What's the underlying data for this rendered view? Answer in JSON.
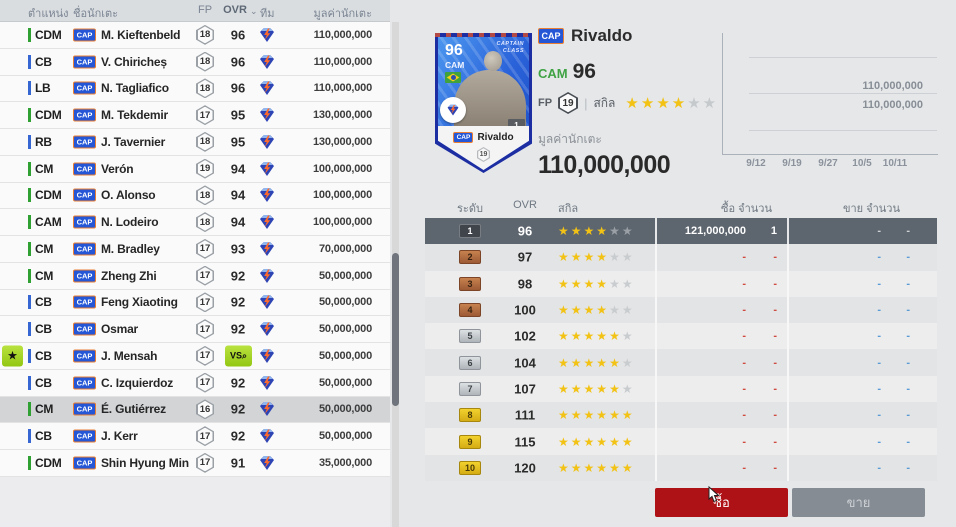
{
  "colors": {
    "accent_green": "#2fa133",
    "accent_blue": "#3566d2",
    "star_gold": "#f2c215",
    "buy_button_red": "#ae1116",
    "sell_button_gray": "#858c94",
    "vs_badge_green": "#a3d41c",
    "selected_market_row": "#5d656e",
    "cap_badge_blue": "#2456d6",
    "cap_badge_orange_border": "#e87f33"
  },
  "left_table": {
    "headers": {
      "position": "ตำแหน่ง",
      "name": "ชื่อนักเตะ",
      "fp": "FP",
      "ovr": "OVR",
      "team": "ทีม",
      "value": "มูลค่านักเตะ"
    },
    "rows": [
      {
        "position": "CDM",
        "pos_color": "green",
        "badge": "CAP",
        "name": "M. Kieftenbeld",
        "fp": "18",
        "ovr": "96",
        "value": "110,000,000"
      },
      {
        "position": "CB",
        "pos_color": "blue",
        "badge": "CAP",
        "name": "V. Chiricheș",
        "fp": "18",
        "ovr": "96",
        "value": "110,000,000"
      },
      {
        "position": "LB",
        "pos_color": "blue",
        "badge": "CAP",
        "name": "N. Tagliafico",
        "fp": "18",
        "ovr": "96",
        "value": "110,000,000"
      },
      {
        "position": "CDM",
        "pos_color": "green",
        "badge": "CAP",
        "name": "M. Tekdemir",
        "fp": "17",
        "ovr": "95",
        "value": "130,000,000"
      },
      {
        "position": "RB",
        "pos_color": "blue",
        "badge": "CAP",
        "name": "J. Tavernier",
        "fp": "18",
        "ovr": "95",
        "value": "130,000,000"
      },
      {
        "position": "CM",
        "pos_color": "green",
        "badge": "CAP",
        "name": "Verón",
        "fp": "19",
        "ovr": "94",
        "value": "100,000,000"
      },
      {
        "position": "CDM",
        "pos_color": "green",
        "badge": "CAP",
        "name": "O. Alonso",
        "fp": "18",
        "ovr": "94",
        "value": "100,000,000"
      },
      {
        "position": "CAM",
        "pos_color": "green",
        "badge": "CAP",
        "name": "N. Lodeiro",
        "fp": "18",
        "ovr": "94",
        "value": "100,000,000"
      },
      {
        "position": "CM",
        "pos_color": "green",
        "badge": "CAP",
        "name": "M. Bradley",
        "fp": "17",
        "ovr": "93",
        "value": "70,000,000"
      },
      {
        "position": "CM",
        "pos_color": "green",
        "badge": "CAP",
        "name": "Zheng Zhi",
        "fp": "17",
        "ovr": "92",
        "value": "50,000,000"
      },
      {
        "position": "CB",
        "pos_color": "blue",
        "badge": "CAP",
        "name": "Feng Xiaoting",
        "fp": "17",
        "ovr": "92",
        "value": "50,000,000"
      },
      {
        "position": "CB",
        "pos_color": "blue",
        "badge": "CAP",
        "name": "Osmar",
        "fp": "17",
        "ovr": "92",
        "value": "50,000,000"
      },
      {
        "position": "CB",
        "pos_color": "blue",
        "badge": "CAP",
        "name": "J. Mensah",
        "fp": "17",
        "ovr": "",
        "vs": true,
        "starred": true,
        "vs_label": "VS",
        "value": "50,000,000"
      },
      {
        "position": "CB",
        "pos_color": "blue",
        "badge": "CAP",
        "name": "C. Izquierdoz",
        "fp": "17",
        "ovr": "92",
        "value": "50,000,000"
      },
      {
        "position": "CM",
        "pos_color": "green",
        "badge": "CAP",
        "name": "É. Gutiérrez",
        "fp": "16",
        "ovr": "92",
        "value": "50,000,000",
        "selected": true
      },
      {
        "position": "CB",
        "pos_color": "blue",
        "badge": "CAP",
        "name": "J. Kerr",
        "fp": "17",
        "ovr": "92",
        "value": "50,000,000"
      },
      {
        "position": "CDM",
        "pos_color": "green",
        "badge": "CAP",
        "name": "Shin Hyung Min",
        "fp": "17",
        "ovr": "91",
        "value": "35,000,000"
      }
    ]
  },
  "player_card": {
    "ovr": "96",
    "position": "CAM",
    "class_line1": "CAPTAIN",
    "class_line2": "CLASS",
    "count": "1",
    "badge": "CAP",
    "name": "Rivaldo",
    "fp": "19"
  },
  "player_detail": {
    "badge": "CAP",
    "name": "Rivaldo",
    "position": "CAM",
    "ovr": "96",
    "fp_label": "FP",
    "fp": "19",
    "divider": "|",
    "skill_label": "สกิล",
    "skill_stars": 4,
    "skill_stars_max": 6,
    "value_label": "มูลค่านักเตะ",
    "value": "110,000,000"
  },
  "chart_data": {
    "type": "line",
    "title": "",
    "xlabel": "",
    "ylabel": "",
    "x": [
      "9/12",
      "9/19",
      "9/27",
      "10/5",
      "10/11"
    ],
    "series": [
      {
        "name": "buy_price",
        "values": [
          110000000,
          110000000,
          110000000,
          110000000,
          110000000
        ]
      },
      {
        "name": "sell_price",
        "values": [
          110000000,
          110000000,
          110000000,
          110000000,
          110000000
        ]
      }
    ],
    "price_labels": [
      "110,000,000",
      "110,000,000"
    ],
    "grid": true,
    "gridline_count": 3,
    "legend": "none"
  },
  "market_table": {
    "headers": {
      "rank": "ระดับ",
      "ovr": "OVR",
      "skill": "สกิล",
      "buy": "ซื้อ จำนวน",
      "sell": "ขาย จำนวน"
    },
    "rows": [
      {
        "rank": "1",
        "tier": "dark",
        "ovr": "96",
        "stars": 4,
        "stars_max": 6,
        "buy_price": "121,000,000",
        "buy_count": "1",
        "sell_price": "-",
        "sell_count": "-",
        "selected": true
      },
      {
        "rank": "2",
        "tier": "bronze",
        "ovr": "97",
        "stars": 4,
        "stars_max": 6,
        "buy_price": "-",
        "buy_count": "-",
        "sell_price": "-",
        "sell_count": "-"
      },
      {
        "rank": "3",
        "tier": "bronze",
        "ovr": "98",
        "stars": 4,
        "stars_max": 6,
        "buy_price": "-",
        "buy_count": "-",
        "sell_price": "-",
        "sell_count": "-"
      },
      {
        "rank": "4",
        "tier": "bronze",
        "ovr": "100",
        "stars": 4,
        "stars_max": 6,
        "buy_price": "-",
        "buy_count": "-",
        "sell_price": "-",
        "sell_count": "-"
      },
      {
        "rank": "5",
        "tier": "silver",
        "ovr": "102",
        "stars": 5,
        "stars_max": 6,
        "buy_price": "-",
        "buy_count": "-",
        "sell_price": "-",
        "sell_count": "-"
      },
      {
        "rank": "6",
        "tier": "silver",
        "ovr": "104",
        "stars": 5,
        "stars_max": 6,
        "buy_price": "-",
        "buy_count": "-",
        "sell_price": "-",
        "sell_count": "-"
      },
      {
        "rank": "7",
        "tier": "silver",
        "ovr": "107",
        "stars": 5,
        "stars_max": 6,
        "buy_price": "-",
        "buy_count": "-",
        "sell_price": "-",
        "sell_count": "-"
      },
      {
        "rank": "8",
        "tier": "gold",
        "ovr": "111",
        "stars": 6,
        "stars_max": 6,
        "buy_price": "-",
        "buy_count": "-",
        "sell_price": "-",
        "sell_count": "-"
      },
      {
        "rank": "9",
        "tier": "gold",
        "ovr": "115",
        "stars": 6,
        "stars_max": 6,
        "buy_price": "-",
        "buy_count": "-",
        "sell_price": "-",
        "sell_count": "-"
      },
      {
        "rank": "10",
        "tier": "gold",
        "ovr": "120",
        "stars": 6,
        "stars_max": 6,
        "buy_price": "-",
        "buy_count": "-",
        "sell_price": "-",
        "sell_count": "-"
      }
    ]
  },
  "actions": {
    "buy": "ซื้อ",
    "sell": "ขาย"
  }
}
